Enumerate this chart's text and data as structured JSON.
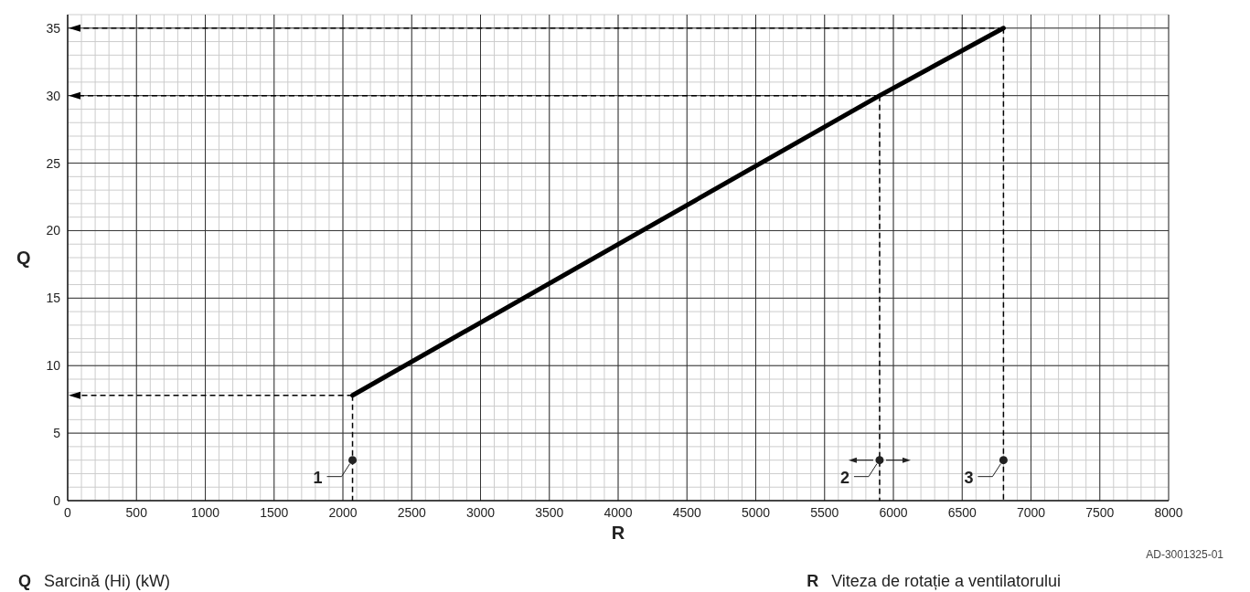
{
  "chart_data": {
    "type": "line",
    "xlabel": "R",
    "ylabel": "Q",
    "xlim": [
      0,
      8000
    ],
    "xticks": [
      0,
      500,
      1000,
      1500,
      2000,
      2500,
      3000,
      3500,
      4000,
      4500,
      5000,
      5500,
      6000,
      6500,
      7000,
      7500,
      8000
    ],
    "ylim": [
      0,
      36
    ],
    "yticks": [
      0,
      5,
      10,
      15,
      20,
      25,
      30,
      35
    ],
    "grid": true,
    "series": [
      {
        "color": "#000000",
        "x": [
          2070,
          5900,
          6800
        ],
        "values": [
          7.8,
          30,
          35
        ]
      }
    ],
    "annotations": [
      "AD-3001325-01",
      "Q",
      "Sarcină (Hi) (kW)",
      "R",
      "Viteza de rotație a ventilatorului",
      {
        "text": "1",
        "x": 2070,
        "y": 3
      },
      {
        "text": "2",
        "x": 5900,
        "y": 3
      },
      {
        "text": "3",
        "x": 6800,
        "y": 3
      }
    ]
  }
}
